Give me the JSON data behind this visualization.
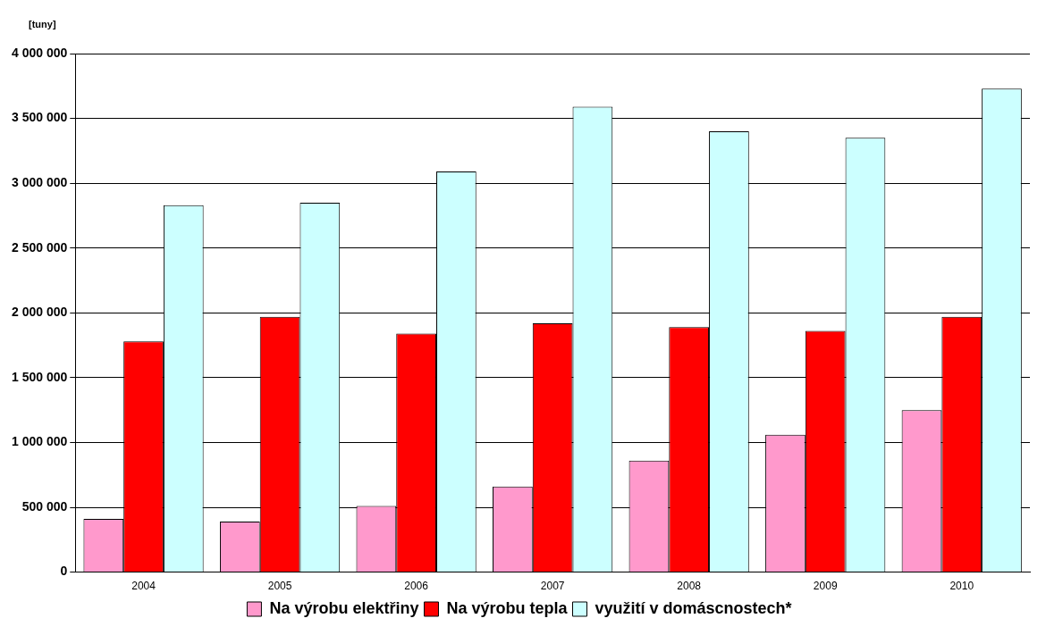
{
  "chart_data": {
    "type": "bar",
    "ylabel": "[tuny]",
    "categories": [
      "2004",
      "2005",
      "2006",
      "2007",
      "2008",
      "2009",
      "2010"
    ],
    "series": [
      {
        "name": "Na výrobu elektřiny",
        "color": "#ff99cc",
        "values": [
          410000,
          390000,
          510000,
          660000,
          860000,
          1060000,
          1250000
        ]
      },
      {
        "name": "Na výrobu tepla",
        "color": "#ff0000",
        "values": [
          1780000,
          1970000,
          1840000,
          1920000,
          1890000,
          1860000,
          1970000
        ]
      },
      {
        "name": "využití v domáscnostech*",
        "color": "#ccffff",
        "values": [
          2830000,
          2850000,
          3090000,
          3590000,
          3400000,
          3350000,
          3730000
        ]
      }
    ],
    "ylim": [
      0,
      4000000
    ],
    "yticks": [
      0,
      {
        "value": 500000,
        "label": "500 000"
      },
      {
        "value": 1000000,
        "label": "1 000 000"
      },
      {
        "value": 1500000,
        "label": "1 500 000"
      },
      {
        "value": 2000000,
        "label": "2 000 000"
      },
      {
        "value": 2500000,
        "label": "2 500 000"
      },
      {
        "value": 3000000,
        "label": "3 000 000"
      },
      {
        "value": 3500000,
        "label": "3 500 000"
      },
      {
        "value": 4000000,
        "label": "4 000 000"
      }
    ],
    "grid": "y",
    "legend": "bottom"
  }
}
